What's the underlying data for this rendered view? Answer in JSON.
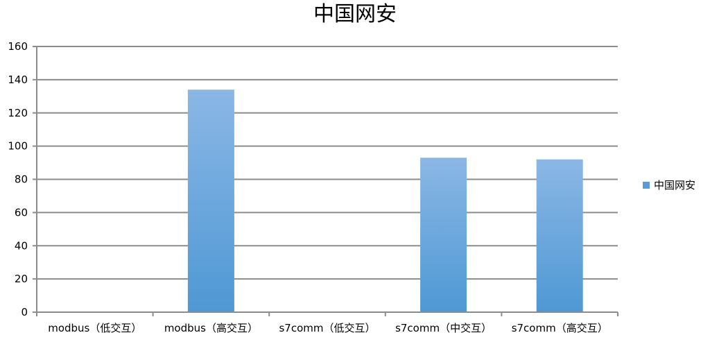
{
  "chart_data": {
    "type": "bar",
    "title": "中国网安",
    "categories": [
      "modbus（低交互）",
      "modbus（高交互）",
      "s7comm（低交互）",
      "s7comm（中交互）",
      "s7comm（高交互）"
    ],
    "series": [
      {
        "name": "中国网安",
        "values": [
          0,
          134,
          0,
          93,
          92
        ],
        "color": "#5b9bd5"
      }
    ],
    "y_ticks": [
      0,
      20,
      40,
      60,
      80,
      100,
      120,
      140,
      160
    ],
    "ylim": [
      0,
      160
    ],
    "grid": true,
    "legend_position": "right",
    "colors": {
      "bar_top": "#8bb7e5",
      "bar_bottom": "#4f98d4",
      "grid": "#8c8c8c",
      "axis": "#8c8c8c",
      "text": "#000000"
    }
  }
}
